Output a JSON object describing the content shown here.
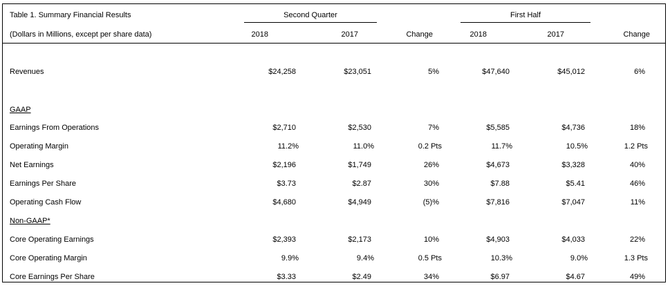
{
  "table": {
    "title": "Table 1. Summary Financial Results",
    "subtitle": "(Dollars in Millions, except per share data)",
    "groups": [
      "Second Quarter",
      "First Half"
    ],
    "columns": [
      "2018",
      "2017",
      "Change",
      "2018",
      "2017",
      "Change"
    ],
    "revenues": {
      "label": "Revenues",
      "values": [
        "$24,258",
        "$23,051",
        "5%",
        "$47,640",
        "$45,012",
        "6%"
      ]
    },
    "gaap_header": "GAAP",
    "gaap_rows": [
      {
        "label": "Earnings From Operations",
        "values": [
          "$2,710",
          "$2,530",
          "7%",
          "$5,585",
          "$4,736",
          "18%"
        ]
      },
      {
        "label": "Operating Margin",
        "values": [
          "11.2%",
          "11.0%",
          "0.2 Pts",
          "11.7%",
          "10.5%",
          "1.2 Pts"
        ]
      },
      {
        "label": "Net Earnings",
        "values": [
          "$2,196",
          "$1,749",
          "26%",
          "$4,673",
          "$3,328",
          "40%"
        ]
      },
      {
        "label": "Earnings Per Share",
        "values": [
          "$3.73",
          "$2.87",
          "30%",
          "$7.88",
          "$5.41",
          "46%"
        ]
      },
      {
        "label": "Operating Cash Flow",
        "values": [
          "$4,680",
          "$4,949",
          "(5)%",
          "$7,816",
          "$7,047",
          "11%"
        ]
      }
    ],
    "nongaap_header": "Non-GAAP*",
    "nongaap_rows": [
      {
        "label": "Core Operating Earnings",
        "values": [
          "$2,393",
          "$2,173",
          "10%",
          "$4,903",
          "$4,033",
          "22%"
        ]
      },
      {
        "label": "Core Operating Margin",
        "values": [
          "9.9%",
          "9.4%",
          "0.5 Pts",
          "10.3%",
          "9.0%",
          "1.3 Pts"
        ]
      },
      {
        "label": "Core Earnings Per Share",
        "values": [
          "$3.33",
          "$2.49",
          "34%",
          "$6.97",
          "$4.67",
          "49%"
        ]
      }
    ]
  }
}
